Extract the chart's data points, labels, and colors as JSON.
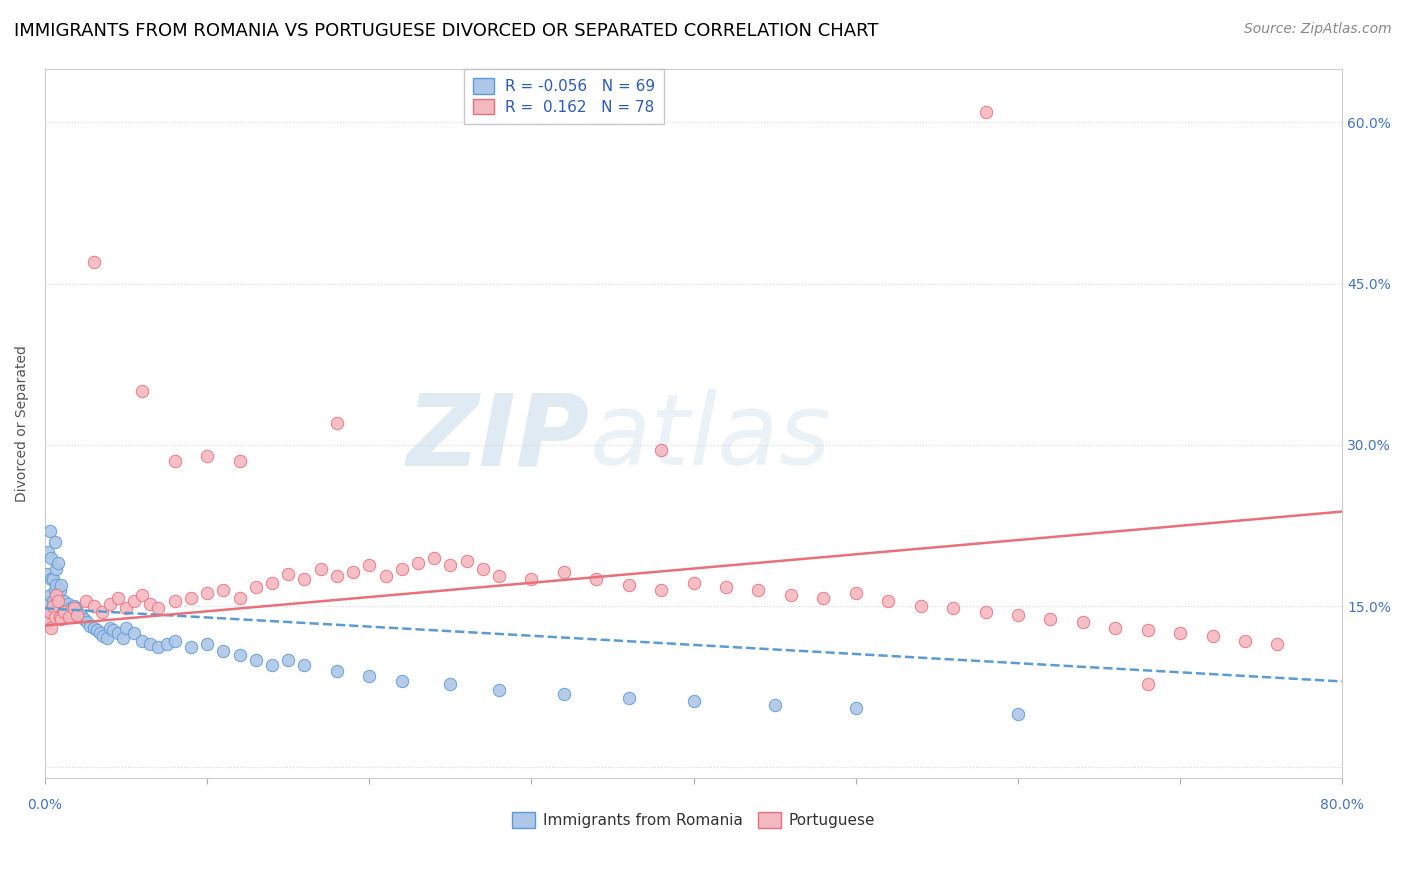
{
  "title": "IMMIGRANTS FROM ROMANIA VS PORTUGUESE DIVORCED OR SEPARATED CORRELATION CHART",
  "source": "Source: ZipAtlas.com",
  "ylabel": "Divorced or Separated",
  "xlim": [
    0.0,
    0.8
  ],
  "ylim": [
    -0.01,
    0.65
  ],
  "series1_name": "Immigrants from Romania",
  "series1_color": "#aec6e8",
  "series1_edge_color": "#5b9bd5",
  "series1_R": -0.056,
  "series1_N": 69,
  "series2_name": "Portuguese",
  "series2_color": "#f4b8c1",
  "series2_edge_color": "#e8707a",
  "series2_R": 0.162,
  "series2_N": 78,
  "legend_R_color": "#2b5bb8",
  "title_fontsize": 13,
  "source_fontsize": 10,
  "axis_label_fontsize": 10,
  "legend_fontsize": 11,
  "background_color": "#ffffff",
  "grid_color": "#d8d8d8",
  "watermark_color": "#c8d8e8",
  "series1_x": [
    0.001,
    0.001,
    0.002,
    0.002,
    0.003,
    0.003,
    0.004,
    0.004,
    0.005,
    0.005,
    0.006,
    0.006,
    0.007,
    0.007,
    0.008,
    0.008,
    0.009,
    0.009,
    0.01,
    0.01,
    0.011,
    0.012,
    0.013,
    0.014,
    0.015,
    0.016,
    0.017,
    0.018,
    0.019,
    0.02,
    0.022,
    0.024,
    0.026,
    0.028,
    0.03,
    0.032,
    0.034,
    0.036,
    0.038,
    0.04,
    0.042,
    0.045,
    0.048,
    0.05,
    0.055,
    0.06,
    0.065,
    0.07,
    0.075,
    0.08,
    0.09,
    0.1,
    0.11,
    0.12,
    0.13,
    0.14,
    0.15,
    0.16,
    0.18,
    0.2,
    0.22,
    0.25,
    0.28,
    0.32,
    0.36,
    0.4,
    0.45,
    0.5,
    0.6
  ],
  "series1_y": [
    0.14,
    0.18,
    0.155,
    0.2,
    0.16,
    0.22,
    0.175,
    0.195,
    0.155,
    0.175,
    0.165,
    0.21,
    0.17,
    0.185,
    0.16,
    0.19,
    0.145,
    0.165,
    0.15,
    0.17,
    0.145,
    0.155,
    0.148,
    0.152,
    0.145,
    0.148,
    0.142,
    0.15,
    0.148,
    0.145,
    0.142,
    0.138,
    0.135,
    0.132,
    0.13,
    0.128,
    0.125,
    0.122,
    0.12,
    0.13,
    0.128,
    0.125,
    0.12,
    0.13,
    0.125,
    0.118,
    0.115,
    0.112,
    0.115,
    0.118,
    0.112,
    0.115,
    0.108,
    0.105,
    0.1,
    0.095,
    0.1,
    0.095,
    0.09,
    0.085,
    0.08,
    0.078,
    0.072,
    0.068,
    0.065,
    0.062,
    0.058,
    0.055,
    0.05
  ],
  "series2_x": [
    0.001,
    0.002,
    0.003,
    0.004,
    0.005,
    0.006,
    0.007,
    0.008,
    0.009,
    0.01,
    0.012,
    0.015,
    0.018,
    0.02,
    0.025,
    0.03,
    0.035,
    0.04,
    0.045,
    0.05,
    0.055,
    0.06,
    0.065,
    0.07,
    0.08,
    0.09,
    0.1,
    0.11,
    0.12,
    0.13,
    0.14,
    0.15,
    0.16,
    0.17,
    0.18,
    0.19,
    0.2,
    0.21,
    0.22,
    0.23,
    0.24,
    0.25,
    0.26,
    0.27,
    0.28,
    0.3,
    0.32,
    0.34,
    0.36,
    0.38,
    0.4,
    0.42,
    0.44,
    0.46,
    0.48,
    0.5,
    0.52,
    0.54,
    0.56,
    0.58,
    0.6,
    0.62,
    0.64,
    0.66,
    0.68,
    0.7,
    0.72,
    0.74,
    0.76,
    0.08,
    0.1,
    0.38,
    0.58,
    0.68,
    0.03,
    0.06,
    0.12,
    0.18
  ],
  "series2_y": [
    0.14,
    0.135,
    0.145,
    0.13,
    0.15,
    0.14,
    0.16,
    0.155,
    0.14,
    0.138,
    0.145,
    0.14,
    0.148,
    0.142,
    0.155,
    0.15,
    0.145,
    0.152,
    0.158,
    0.148,
    0.155,
    0.16,
    0.152,
    0.148,
    0.155,
    0.158,
    0.162,
    0.165,
    0.158,
    0.168,
    0.172,
    0.18,
    0.175,
    0.185,
    0.178,
    0.182,
    0.188,
    0.178,
    0.185,
    0.19,
    0.195,
    0.188,
    0.192,
    0.185,
    0.178,
    0.175,
    0.182,
    0.175,
    0.17,
    0.165,
    0.172,
    0.168,
    0.165,
    0.16,
    0.158,
    0.162,
    0.155,
    0.15,
    0.148,
    0.145,
    0.142,
    0.138,
    0.135,
    0.13,
    0.128,
    0.125,
    0.122,
    0.118,
    0.115,
    0.285,
    0.29,
    0.295,
    0.61,
    0.078,
    0.47,
    0.35,
    0.285,
    0.32
  ],
  "trend1_x_start": 0.0,
  "trend1_x_end": 0.8,
  "trend1_y_start": 0.148,
  "trend1_y_end": 0.08,
  "trend2_x_start": 0.0,
  "trend2_x_end": 0.8,
  "trend2_y_start": 0.132,
  "trend2_y_end": 0.238,
  "dot_size": 80,
  "yticks": [
    0.0,
    0.15,
    0.3,
    0.45,
    0.6
  ],
  "ytick_labels_right": [
    "",
    "15.0%",
    "30.0%",
    "45.0%",
    "60.0%"
  ]
}
